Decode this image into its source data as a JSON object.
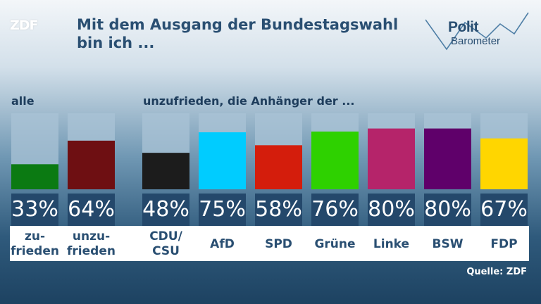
{
  "logo_text": "ZDF",
  "title": "Mit dem Ausgang der Bundestagswahl bin ich ...",
  "brand": {
    "line1": "Polit",
    "line2": "Barometer"
  },
  "sections": {
    "left": "alle",
    "right": "unzufrieden, die Anhänger der ..."
  },
  "source": "Quelle: ZDF",
  "chart_data": {
    "type": "bar",
    "categories": [
      "zu-\nfrieden",
      "unzu-\nfrieden",
      "CDU/\nCSU",
      "AfD",
      "SPD",
      "Grüne",
      "Linke",
      "BSW",
      "FDP"
    ],
    "values": [
      33,
      64,
      48,
      75,
      58,
      76,
      80,
      80,
      67
    ],
    "value_labels": [
      "33%",
      "64%",
      "48%",
      "75%",
      "58%",
      "76%",
      "80%",
      "80%",
      "67%"
    ],
    "colors": [
      "#0b7a12",
      "#6e0f12",
      "#1c1c1c",
      "#00ccff",
      "#d41d0c",
      "#2ed100",
      "#b5246a",
      "#5f006a",
      "#ffd600"
    ],
    "ylim": [
      0,
      100
    ]
  }
}
